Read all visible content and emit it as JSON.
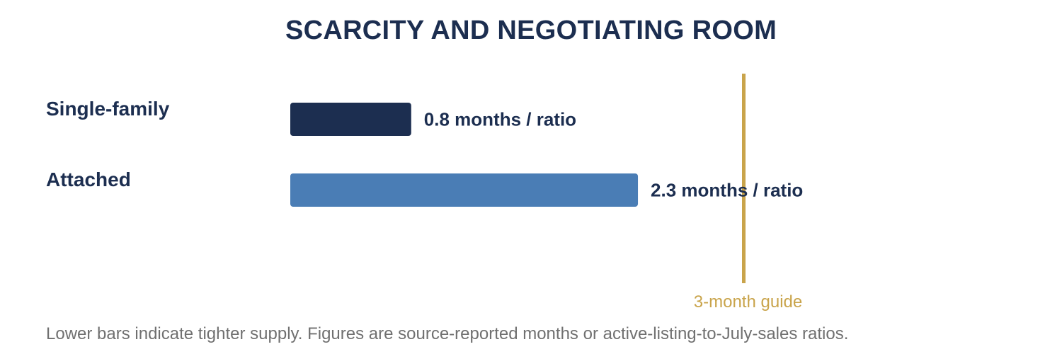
{
  "chart_data": {
    "type": "bar",
    "orientation": "horizontal",
    "title": "SCARCITY AND NEGOTIATING ROOM",
    "categories": [
      "Single-family",
      "Attached"
    ],
    "values": [
      0.8,
      2.3
    ],
    "value_labels": [
      "0.8 months / ratio",
      "2.3 months / ratio"
    ],
    "colors": [
      "#1c2e50",
      "#4a7db5"
    ],
    "xlim": [
      0,
      4.5
    ],
    "reference_line": {
      "value": 3,
      "label": "3-month guide",
      "color": "#c9a44b"
    },
    "grid": false,
    "legend": "none",
    "footnote": "Lower bars indicate tighter supply. Figures are source-reported months or active-listing-to-July-sales ratios."
  }
}
